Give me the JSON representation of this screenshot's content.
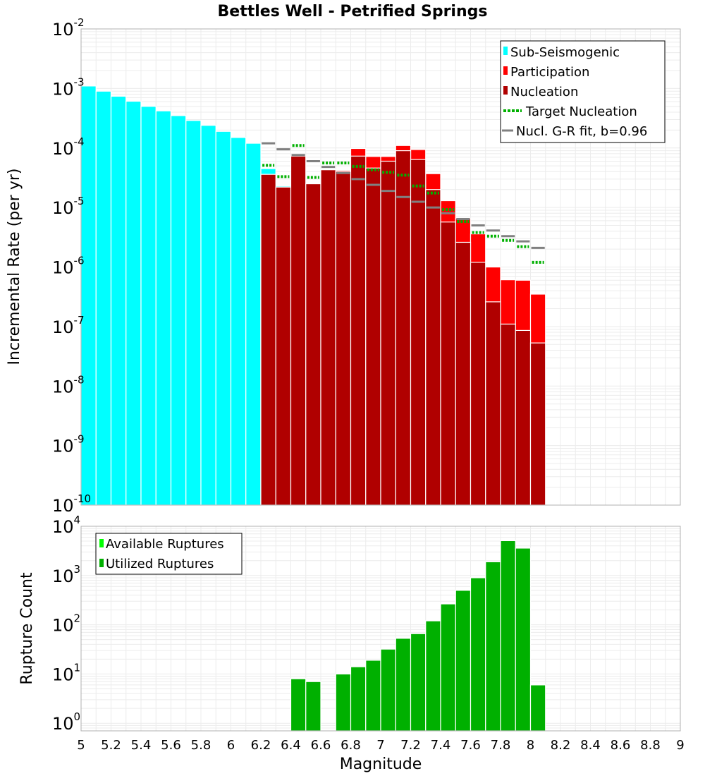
{
  "chart_data": [
    {
      "type": "bar",
      "title": "Bettles Well - Petrified Springs",
      "xlabel": "",
      "ylabel": "Incremental Rate (per yr)",
      "xlim": [
        5,
        9
      ],
      "y_scale": "log",
      "ylim": [
        1e-10,
        0.01
      ],
      "y_ticks": [
        {
          "base": "10",
          "exp": "-10"
        },
        {
          "base": "10",
          "exp": "-9"
        },
        {
          "base": "10",
          "exp": "-8"
        },
        {
          "base": "10",
          "exp": "-7"
        },
        {
          "base": "10",
          "exp": "-6"
        },
        {
          "base": "10",
          "exp": "-5"
        },
        {
          "base": "10",
          "exp": "-4"
        },
        {
          "base": "10",
          "exp": "-3"
        },
        {
          "base": "10",
          "exp": "-2"
        }
      ],
      "grid": true,
      "legend": {
        "position": "top-right",
        "entries": [
          {
            "label": "Sub-Seismogenic",
            "color": "#00ffff"
          },
          {
            "label": "Participation",
            "color": "#ff0000"
          },
          {
            "label": "Nucleation",
            "color": "#b00000"
          },
          {
            "label": "Target Nucleation",
            "color": "#00b000"
          },
          {
            "label": "Nucl. G-R fit, b=0.96",
            "color": "#808080"
          }
        ]
      },
      "series": [
        {
          "name": "Sub-Seismogenic",
          "color": "#00ffff",
          "points": [
            [
              5.05,
              0.0011
            ],
            [
              5.15,
              0.0009
            ],
            [
              5.25,
              0.00074
            ],
            [
              5.35,
              0.00061
            ],
            [
              5.45,
              0.0005
            ],
            [
              5.55,
              0.00042
            ],
            [
              5.65,
              0.00035
            ],
            [
              5.75,
              0.00029
            ],
            [
              5.85,
              0.00024
            ],
            [
              5.95,
              0.00019
            ],
            [
              6.05,
              0.00015
            ],
            [
              6.15,
              0.00012
            ],
            [
              6.25,
              4.5e-05
            ],
            [
              6.35,
              2.3e-05
            ]
          ]
        },
        {
          "name": "Participation",
          "color": "#ff0000",
          "points": [
            [
              6.25,
              3.6e-05
            ],
            [
              6.35,
              2.2e-05
            ],
            [
              6.45,
              7.3e-05
            ],
            [
              6.55,
              2.5e-05
            ],
            [
              6.65,
              4.3e-05
            ],
            [
              6.75,
              4.2e-05
            ],
            [
              6.85,
              9.8e-05
            ],
            [
              6.95,
              7.2e-05
            ],
            [
              7.05,
              7.2e-05
            ],
            [
              7.15,
              0.00011
            ],
            [
              7.25,
              9.4e-05
            ],
            [
              7.35,
              3.7e-05
            ],
            [
              7.45,
              1.3e-05
            ],
            [
              7.55,
              6.6e-06
            ],
            [
              7.65,
              3.6e-06
            ],
            [
              7.75,
              1e-06
            ],
            [
              7.85,
              6.1e-07
            ],
            [
              7.95,
              6e-07
            ],
            [
              8.05,
              3.5e-07
            ]
          ]
        },
        {
          "name": "Nucleation",
          "color": "#b00000",
          "points": [
            [
              6.25,
              3.6e-05
            ],
            [
              6.35,
              2.2e-05
            ],
            [
              6.45,
              7.3e-05
            ],
            [
              6.55,
              2.5e-05
            ],
            [
              6.65,
              4.3e-05
            ],
            [
              6.75,
              4e-05
            ],
            [
              6.85,
              7.3e-05
            ],
            [
              6.95,
              4.6e-05
            ],
            [
              7.05,
              6e-05
            ],
            [
              7.15,
              9e-05
            ],
            [
              7.25,
              6.4e-05
            ],
            [
              7.35,
              2e-05
            ],
            [
              7.45,
              5.7e-06
            ],
            [
              7.55,
              2.6e-06
            ],
            [
              7.65,
              1.2e-06
            ],
            [
              7.75,
              2.6e-07
            ],
            [
              7.85,
              1.1e-07
            ],
            [
              7.95,
              8.6e-08
            ],
            [
              8.05,
              5.3e-08
            ]
          ]
        },
        {
          "name": "Target Nucleation",
          "color": "#00b000",
          "points": [
            [
              6.25,
              5.1e-05
            ],
            [
              6.35,
              3.3e-05
            ],
            [
              6.45,
              0.00011
            ],
            [
              6.55,
              3.2e-05
            ],
            [
              6.65,
              5.6e-05
            ],
            [
              6.75,
              5.6e-05
            ],
            [
              6.85,
              4.9e-05
            ],
            [
              6.95,
              4.3e-05
            ],
            [
              7.05,
              3.9e-05
            ],
            [
              7.15,
              3.5e-05
            ],
            [
              7.25,
              2.3e-05
            ],
            [
              7.35,
              1.75e-05
            ],
            [
              7.45,
              9.2e-06
            ],
            [
              7.55,
              5.8e-06
            ],
            [
              7.65,
              3.8e-06
            ],
            [
              7.75,
              3.3e-06
            ],
            [
              7.85,
              2.8e-06
            ],
            [
              7.95,
              2.2e-06
            ],
            [
              8.05,
              1.2e-06
            ]
          ]
        },
        {
          "name": "Nucl. G-R fit, b=0.96",
          "color": "#808080",
          "points": [
            [
              6.25,
              0.00012
            ],
            [
              6.35,
              9.5e-05
            ],
            [
              6.45,
              7.6e-05
            ],
            [
              6.55,
              6e-05
            ],
            [
              6.65,
              4.8e-05
            ],
            [
              6.75,
              3.8e-05
            ],
            [
              6.85,
              3e-05
            ],
            [
              6.95,
              2.4e-05
            ],
            [
              7.05,
              1.9e-05
            ],
            [
              7.15,
              1.5e-05
            ],
            [
              7.25,
              1.25e-05
            ],
            [
              7.35,
              1e-05
            ],
            [
              7.45,
              8e-06
            ],
            [
              7.55,
              6.4e-06
            ],
            [
              7.65,
              5e-06
            ],
            [
              7.75,
              4.1e-06
            ],
            [
              7.85,
              3.3e-06
            ],
            [
              7.95,
              2.7e-06
            ],
            [
              8.05,
              2.1e-06
            ]
          ]
        }
      ]
    },
    {
      "type": "bar",
      "title": "",
      "xlabel": "Magnitude",
      "ylabel": "Rupture Count",
      "xlim": [
        5,
        9
      ],
      "y_scale": "log",
      "ylim": [
        0.7,
        10000.0
      ],
      "y_ticks": [
        {
          "base": "10",
          "exp": "0"
        },
        {
          "base": "10",
          "exp": "1"
        },
        {
          "base": "10",
          "exp": "2"
        },
        {
          "base": "10",
          "exp": "3"
        },
        {
          "base": "10",
          "exp": "4"
        }
      ],
      "x_ticks": [
        "5",
        "5.2",
        "5.4",
        "5.6",
        "5.8",
        "6",
        "6.2",
        "6.4",
        "6.6",
        "6.8",
        "7",
        "7.2",
        "7.4",
        "7.6",
        "7.8",
        "8",
        "8.2",
        "8.4",
        "8.6",
        "8.8",
        "9"
      ],
      "grid": true,
      "legend": {
        "position": "top-left",
        "entries": [
          {
            "label": "Available Ruptures",
            "color": "#00ff00"
          },
          {
            "label": "Utilized Ruptures",
            "color": "#00b000"
          }
        ]
      },
      "series": [
        {
          "name": "Utilized Ruptures",
          "color": "#00b000",
          "points": [
            [
              6.45,
              8
            ],
            [
              6.55,
              7
            ],
            [
              6.75,
              10
            ],
            [
              6.85,
              14
            ],
            [
              6.95,
              19
            ],
            [
              7.05,
              32
            ],
            [
              7.15,
              53
            ],
            [
              7.25,
              66
            ],
            [
              7.35,
              120
            ],
            [
              7.45,
              265
            ],
            [
              7.55,
              500
            ],
            [
              7.65,
              900
            ],
            [
              7.75,
              1900
            ],
            [
              7.85,
              5100
            ],
            [
              7.95,
              3600
            ],
            [
              8.05,
              6
            ]
          ]
        }
      ]
    }
  ]
}
